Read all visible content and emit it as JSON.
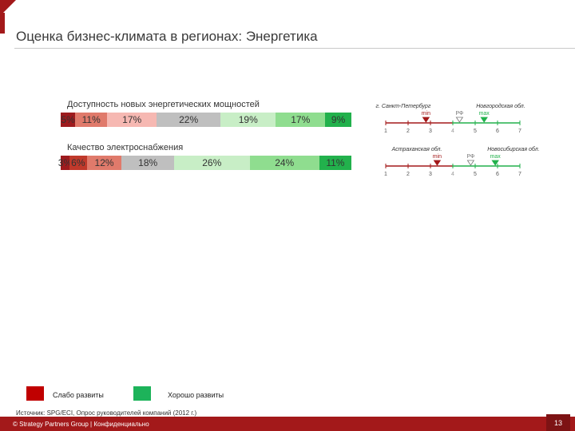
{
  "header": {
    "title": "Оценка бизнес-климата в регионах: Энергетика"
  },
  "colors": {
    "scale": [
      "#9e1b1e",
      "#c0392b",
      "#e06a5a",
      "#f5b3ae",
      "#bfbfbf",
      "#c6ecc3",
      "#8cd88c",
      "#22b14c"
    ],
    "weak": "#c00000",
    "strong": "#1db35a",
    "brand": "#a3191a"
  },
  "chart_data": [
    {
      "type": "bar",
      "stacked": true,
      "orientation": "horizontal",
      "title": "Доступность новых энергетических мощностей",
      "series": [
        {
          "value": 5,
          "label": "5%",
          "color": "#9e1b1e"
        },
        {
          "value": 11,
          "label": "11%",
          "color": "#e07a6b"
        },
        {
          "value": 17,
          "label": "17%",
          "color": "#f6b8b2"
        },
        {
          "value": 22,
          "label": "22%",
          "color": "#bfbfbf"
        },
        {
          "value": 19,
          "label": "19%",
          "color": "#c8eec6"
        },
        {
          "value": 17,
          "label": "17%",
          "color": "#8fdd8f"
        },
        {
          "value": 9,
          "label": "9%",
          "color": "#22b14c"
        }
      ]
    },
    {
      "type": "bar",
      "stacked": true,
      "orientation": "horizontal",
      "title": "Качество электроснабжения",
      "series": [
        {
          "value": 3,
          "label": "3%",
          "color": "#9e1b1e"
        },
        {
          "value": 6,
          "label": "6%",
          "color": "#c0392b"
        },
        {
          "value": 12,
          "label": "12%",
          "color": "#e07a6b"
        },
        {
          "value": 18,
          "label": "18%",
          "color": "#bfbfbf"
        },
        {
          "value": 26,
          "label": "26%",
          "color": "#c8eec6"
        },
        {
          "value": 24,
          "label": "24%",
          "color": "#8fdd8f"
        },
        {
          "value": 11,
          "label": "11%",
          "color": "#22b14c"
        }
      ]
    },
    {
      "type": "scale",
      "ticks": [
        "1",
        "2",
        "3",
        "4",
        "5",
        "6",
        "7"
      ],
      "markers": [
        {
          "label": "min",
          "value": 2.8,
          "kind": "min",
          "region": "г. Санкт-Петербург"
        },
        {
          "label": "РФ",
          "value": 4.3,
          "kind": "rf"
        },
        {
          "label": "max",
          "value": 5.4,
          "kind": "max",
          "region": "Новгородская обл."
        }
      ]
    },
    {
      "type": "scale",
      "ticks": [
        "1",
        "2",
        "3",
        "4",
        "5",
        "6",
        "7"
      ],
      "markers": [
        {
          "label": "min",
          "value": 3.3,
          "kind": "min",
          "region": "Астраханская обл."
        },
        {
          "label": "РФ",
          "value": 4.8,
          "kind": "rf"
        },
        {
          "label": "max",
          "value": 5.9,
          "kind": "max",
          "region": "Новосибирская обл."
        }
      ]
    }
  ],
  "legend": {
    "weak": "Слабо развиты",
    "strong": "Хорошо развиты"
  },
  "source": "Источник: SPG/ECI, Опрос руководителей компаний (2012 г.)",
  "footer": {
    "text": "© Strategy Partners Group | Конфиденциально",
    "page": "13"
  }
}
